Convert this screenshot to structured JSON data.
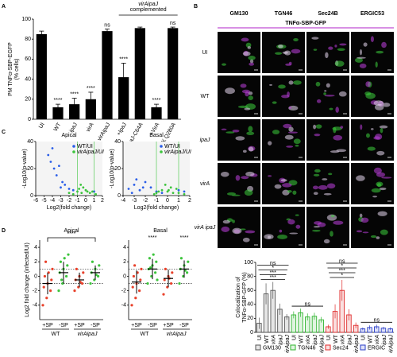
{
  "panel_labels": [
    "A",
    "B",
    "C",
    "D"
  ],
  "image_panel": {
    "headers": [
      "GM130",
      "TGN46",
      "Sec24B",
      "ERGIC53"
    ],
    "overlay_label": "TNFα-SBP-GFP",
    "rows": [
      "UI",
      "WT",
      "ipaJ",
      "virA",
      "virA ipaJ"
    ]
  },
  "chart_data": [
    {
      "type": "bar",
      "ylabel": [
        "PM TNFα-SBP-EGFP",
        "(% cells)"
      ],
      "categories": [
        "UI",
        "WT",
        "ipaJ",
        "virA",
        "virAipaJ",
        "+IpaJ",
        "+IpaJ-C64A",
        "+VirA",
        "+VirA-R188K Q280A"
      ],
      "values": [
        85,
        12,
        15,
        20,
        88,
        42,
        91,
        12,
        91
      ],
      "errors": [
        3,
        3,
        6,
        7,
        2,
        14,
        1,
        3,
        1
      ],
      "significance": [
        null,
        "****",
        "****",
        "****",
        "ns",
        "****",
        null,
        "****",
        "ns"
      ],
      "group_label": [
        "virAipaJ",
        "complemented"
      ],
      "color": "#000000",
      "ylim": [
        0,
        100
      ],
      "yticks": [
        0,
        20,
        40,
        60,
        80,
        100
      ]
    },
    {
      "type": "scatter",
      "title": "Apical",
      "xlabel": "Log2(fold change)",
      "ylabel": "-Log10(p-value)",
      "xlim": [
        -6,
        2
      ],
      "xticks": [
        -6,
        -5,
        -4,
        -3,
        -2,
        -1,
        0,
        1,
        2
      ],
      "ylim": [
        0,
        40
      ],
      "yticks": [
        0,
        20,
        40
      ],
      "vlines": [
        -1,
        1
      ],
      "series": [
        {
          "name": "WT/UI",
          "color": "#2a5ee8",
          "x": [
            -4.5,
            -4.2,
            -3.8,
            -3.5,
            -3.2,
            -2.8,
            -2.5,
            -2,
            -1.5,
            -4,
            1,
            -3
          ],
          "values": [
            30,
            25,
            20,
            15,
            22,
            10,
            8,
            5,
            4,
            35,
            3,
            6
          ]
        },
        {
          "name": "virAipaJ/UI",
          "color": "#3cc43c",
          "x": [
            -1,
            -0.8,
            -0.5,
            -0.3,
            0,
            0.2,
            0.5,
            -1.5,
            -2,
            0.8,
            1.2,
            -0.6
          ],
          "values": [
            3,
            5,
            2,
            6,
            4,
            3,
            2,
            1,
            2,
            3,
            1,
            8
          ]
        }
      ]
    },
    {
      "type": "scatter",
      "title": "Basal",
      "xlabel": "Log2(fold change)",
      "ylabel": "-Log10(p-value)",
      "xlim": [
        -4,
        2
      ],
      "xticks": [
        -4,
        -3,
        -2,
        -1,
        0,
        1,
        2
      ],
      "ylim": [
        0,
        40
      ],
      "yticks": [
        0,
        20,
        40
      ],
      "vlines": [
        -1,
        1
      ],
      "series": [
        {
          "name": "WT/UI",
          "color": "#2a5ee8",
          "x": [
            -3.5,
            -3,
            -2.5,
            -2,
            -1.5,
            -1,
            -3.2,
            -2.8,
            1,
            1.5,
            -0.5,
            -2.2
          ],
          "values": [
            5,
            8,
            4,
            10,
            6,
            3,
            2,
            12,
            4,
            3,
            2,
            6
          ]
        },
        {
          "name": "virAipaJ/UI",
          "color": "#3cc43c",
          "x": [
            -1,
            -0.5,
            0,
            0.5,
            0.8,
            -1.2,
            0.3,
            -0.2,
            1,
            1.5,
            -0.8,
            0.1
          ],
          "values": [
            2,
            4,
            3,
            2,
            5,
            1,
            6,
            8,
            2,
            1,
            3,
            4
          ]
        }
      ]
    },
    {
      "type": "strip",
      "title": "Apical",
      "ylabel": "Log2 fold change (infected/UI)",
      "categories": [
        "+SP",
        "-SP",
        "+SP",
        "-SP"
      ],
      "groups": [
        "WT",
        "virAipaJ"
      ],
      "colors": [
        "#e8402a",
        "#3cc43c",
        "#e8402a",
        "#3cc43c"
      ],
      "points": [
        [
          -4,
          -3,
          -2,
          -1.5,
          -1,
          -0.5,
          0,
          0.5,
          1,
          2
        ],
        [
          -2,
          -1,
          0,
          0.5,
          1,
          1.5,
          2,
          2.5,
          3,
          -0.5
        ],
        [
          -2,
          -1.5,
          -1,
          -0.5,
          0,
          0.5,
          1,
          -0.8
        ],
        [
          -1,
          -0.5,
          0,
          0.5,
          1,
          1.5,
          2,
          0.2
        ]
      ],
      "means": [
        -1,
        0.5,
        -0.5,
        0.5
      ],
      "sds": [
        1.5,
        1.5,
        1,
        1
      ],
      "hlines": [
        -1,
        1
      ],
      "bracket_label": "****",
      "ylim": [
        -6,
        5
      ],
      "yticks": [
        -4,
        -2,
        0,
        2,
        4
      ]
    },
    {
      "type": "strip",
      "title": "Basal",
      "categories": [
        "+SP",
        "-SP",
        "+SP",
        "-SP"
      ],
      "groups": [
        "WT",
        "virAipaJ"
      ],
      "colors": [
        "#e8402a",
        "#3cc43c",
        "#e8402a",
        "#3cc43c"
      ],
      "points": [
        [
          -4,
          -3,
          -2,
          -1.5,
          -1,
          -0.5,
          0,
          0.5,
          1,
          1.5
        ],
        [
          -1,
          0,
          0.5,
          1,
          1.5,
          2,
          2.5,
          3,
          -0.5,
          1.2
        ],
        [
          -2.5,
          -1.5,
          -1,
          -0.5,
          0,
          0.5,
          1,
          -0.3
        ],
        [
          -1,
          0,
          0.5,
          1,
          1.5,
          2,
          2.5,
          0.8
        ]
      ],
      "means": [
        -0.8,
        1,
        -0.3,
        1
      ],
      "sds": [
        1.6,
        1.4,
        1.2,
        1.2
      ],
      "hlines": [
        -1,
        1
      ],
      "significance": [
        null,
        "****",
        null,
        "****"
      ],
      "ylim": [
        -6,
        5
      ],
      "yticks": [
        -4,
        -2,
        0,
        2,
        4
      ]
    },
    {
      "type": "grouped_bar",
      "ylabel": [
        "Colocalization of",
        "TNFα-SBP-GFP (%)"
      ],
      "categories": [
        "UI",
        "WT",
        "virA",
        "ipaJ",
        "virAipaJ"
      ],
      "series": [
        {
          "name": "GM130",
          "color": "#555555",
          "values": [
            13,
            55,
            60,
            33,
            22
          ],
          "errors": [
            8,
            15,
            12,
            8,
            4
          ],
          "significance": [
            "ns",
            "*",
            "***",
            "***"
          ]
        },
        {
          "name": "TGN46",
          "color": "#2db42d",
          "values": [
            25,
            28,
            22,
            23,
            18
          ],
          "errors": [
            5,
            6,
            5,
            5,
            4
          ],
          "significance": [
            "ns"
          ]
        },
        {
          "name": "Sec24",
          "color": "#e02a2a",
          "values": [
            8,
            30,
            60,
            25,
            10
          ],
          "errors": [
            3,
            10,
            15,
            8,
            4
          ],
          "significance": [
            "ns",
            "*",
            "***",
            "*"
          ]
        },
        {
          "name": "ERGIC",
          "color": "#2a3ec8",
          "values": [
            5,
            7,
            8,
            6,
            5
          ],
          "errors": [
            2,
            3,
            3,
            2,
            2
          ],
          "significance": [
            "ns"
          ]
        }
      ],
      "ylim": [
        0,
        100
      ],
      "yticks": [
        0,
        20,
        40,
        60,
        80,
        100
      ]
    }
  ]
}
